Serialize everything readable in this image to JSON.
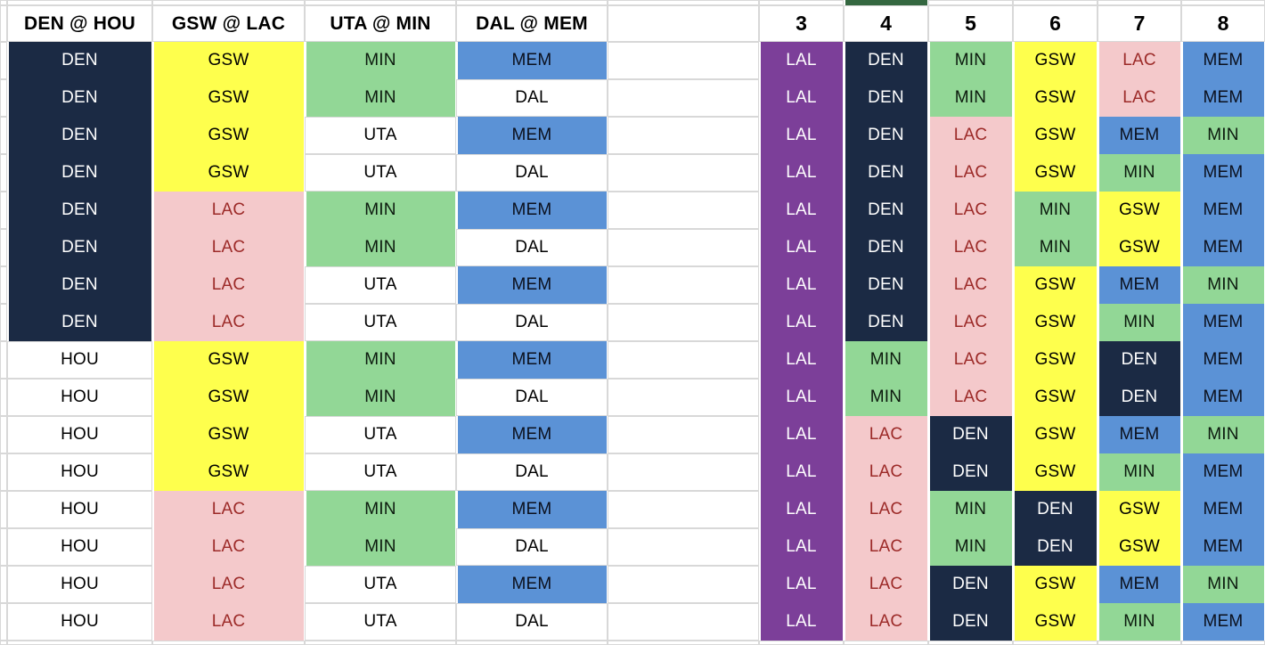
{
  "header": {
    "matchups": [
      "DEN @ HOU",
      "GSW @ LAC",
      "UTA @ MIN",
      "DAL @ MEM"
    ],
    "spacer": "",
    "pick_numbers": [
      "3",
      "4",
      "5",
      "6",
      "7",
      "8"
    ]
  },
  "colors": {
    "DEN": {
      "bg": "#1b2a44",
      "fg": "#ffffff"
    },
    "HOU": {
      "bg": "#ffffff",
      "fg": "#000000"
    },
    "GSW": {
      "bg": "#feff4d",
      "fg": "#000000"
    },
    "LAC": {
      "bg": "#f4c9cb",
      "fg": "#9c2a28"
    },
    "UTA": {
      "bg": "#ffffff",
      "fg": "#000000"
    },
    "MIN": {
      "bg": "#92d796",
      "fg": "#0c1a0e"
    },
    "DAL": {
      "bg": "#ffffff",
      "fg": "#000000"
    },
    "MEM": {
      "bg": "#5b92d6",
      "fg": "#0b101d"
    },
    "LAL": {
      "bg": "#7c3f99",
      "fg": "#ffffff"
    }
  },
  "accent": {
    "gridline": "#d8d8d8",
    "top_strip_green": "#346740"
  },
  "rows": [
    [
      "DEN",
      "GSW",
      "MIN",
      "MEM",
      "",
      "LAL",
      "DEN",
      "MIN",
      "GSW",
      "LAC",
      "MEM"
    ],
    [
      "DEN",
      "GSW",
      "MIN",
      "DAL",
      "",
      "LAL",
      "DEN",
      "MIN",
      "GSW",
      "LAC",
      "MEM"
    ],
    [
      "DEN",
      "GSW",
      "UTA",
      "MEM",
      "",
      "LAL",
      "DEN",
      "LAC",
      "GSW",
      "MEM",
      "MIN"
    ],
    [
      "DEN",
      "GSW",
      "UTA",
      "DAL",
      "",
      "LAL",
      "DEN",
      "LAC",
      "GSW",
      "MIN",
      "MEM"
    ],
    [
      "DEN",
      "LAC",
      "MIN",
      "MEM",
      "",
      "LAL",
      "DEN",
      "LAC",
      "MIN",
      "GSW",
      "MEM"
    ],
    [
      "DEN",
      "LAC",
      "MIN",
      "DAL",
      "",
      "LAL",
      "DEN",
      "LAC",
      "MIN",
      "GSW",
      "MEM"
    ],
    [
      "DEN",
      "LAC",
      "UTA",
      "MEM",
      "",
      "LAL",
      "DEN",
      "LAC",
      "GSW",
      "MEM",
      "MIN"
    ],
    [
      "DEN",
      "LAC",
      "UTA",
      "DAL",
      "",
      "LAL",
      "DEN",
      "LAC",
      "GSW",
      "MIN",
      "MEM"
    ],
    [
      "HOU",
      "GSW",
      "MIN",
      "MEM",
      "",
      "LAL",
      "MIN",
      "LAC",
      "GSW",
      "DEN",
      "MEM"
    ],
    [
      "HOU",
      "GSW",
      "MIN",
      "DAL",
      "",
      "LAL",
      "MIN",
      "LAC",
      "GSW",
      "DEN",
      "MEM"
    ],
    [
      "HOU",
      "GSW",
      "UTA",
      "MEM",
      "",
      "LAL",
      "LAC",
      "DEN",
      "GSW",
      "MEM",
      "MIN"
    ],
    [
      "HOU",
      "GSW",
      "UTA",
      "DAL",
      "",
      "LAL",
      "LAC",
      "DEN",
      "GSW",
      "MIN",
      "MEM"
    ],
    [
      "HOU",
      "LAC",
      "MIN",
      "MEM",
      "",
      "LAL",
      "LAC",
      "MIN",
      "DEN",
      "GSW",
      "MEM"
    ],
    [
      "HOU",
      "LAC",
      "MIN",
      "DAL",
      "",
      "LAL",
      "LAC",
      "MIN",
      "DEN",
      "GSW",
      "MEM"
    ],
    [
      "HOU",
      "LAC",
      "UTA",
      "MEM",
      "",
      "LAL",
      "LAC",
      "DEN",
      "GSW",
      "MEM",
      "MIN"
    ],
    [
      "HOU",
      "LAC",
      "UTA",
      "DAL",
      "",
      "LAL",
      "LAC",
      "DEN",
      "GSW",
      "MIN",
      "MEM"
    ]
  ]
}
